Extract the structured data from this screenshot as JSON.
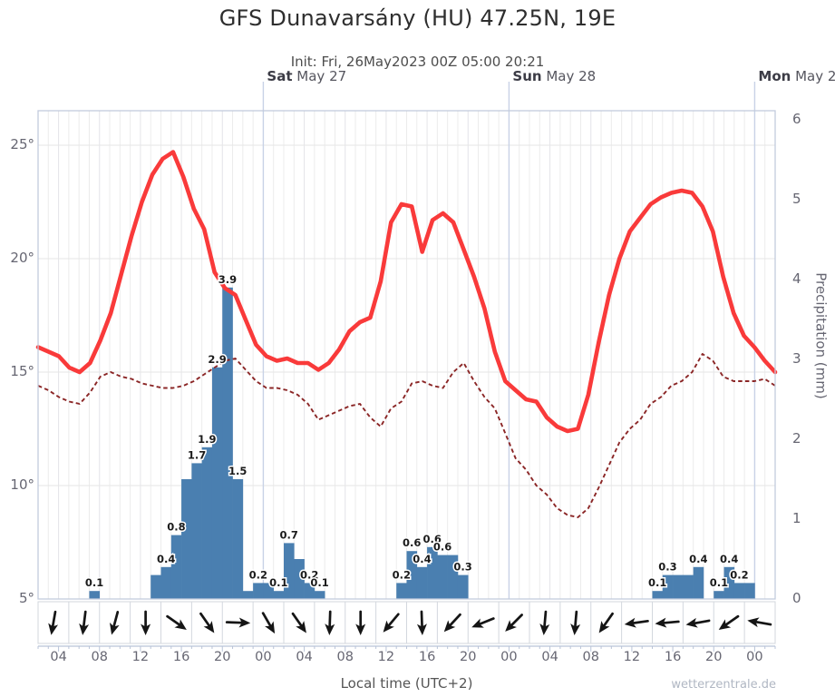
{
  "header": {
    "title": "GFS Dunavarsány (HU) 47.25N, 19E",
    "init_line": "Init: Fri, 26May2023 00Z 05:00 20:21"
  },
  "days": [
    {
      "name": "Sat",
      "date": "May 27"
    },
    {
      "name": "Sun",
      "date": "May 28"
    },
    {
      "name": "Mon",
      "date": "May 29"
    }
  ],
  "axes": {
    "temp_tick_labels": [
      "25°",
      "20°",
      "15°",
      "10°",
      "5°"
    ],
    "temp_tick_values": [
      25,
      20,
      15,
      10,
      5
    ],
    "precip_tick_labels": [
      "6",
      "5",
      "4",
      "3",
      "2",
      "1",
      "0"
    ],
    "precip_tick_values": [
      6,
      5,
      4,
      3,
      2,
      1,
      0
    ],
    "precip_label": "Precipitation (mm)",
    "x_label": "Local time (UTC+2)",
    "x_tick_labels": [
      "04",
      "08",
      "12",
      "16",
      "20",
      "00",
      "04",
      "08",
      "12",
      "16",
      "20",
      "00",
      "04",
      "08",
      "12",
      "16",
      "20",
      "00"
    ]
  },
  "watermark": "wetterzentrale.de",
  "colors": {
    "temperature": "#f93a3a",
    "dew_point": "#8b2626",
    "precip_bar": "#4a7fb0",
    "grid": "#ececec",
    "grid_h": "#e6e6e6",
    "day_line": "#c8d2e6",
    "border": "#c2cbdd",
    "axis_line": "#b9c4d8",
    "wind_arrow": "#151515",
    "bar_label": "#1b1b1b"
  },
  "chart_data": {
    "type": "meteogram (line + bar + wind arrows)",
    "title": "GFS Dunavarsány (HU) 47.25N, 19E",
    "hours": 72,
    "start": "Fri 26 May 2023 02:00 local (init 00Z)",
    "x_tick_hours": [
      "04",
      "08",
      "12",
      "16",
      "20",
      "00",
      "04",
      "08",
      "12",
      "16",
      "20",
      "00",
      "04",
      "08",
      "12",
      "16",
      "20",
      "00"
    ],
    "day_boundaries_hour_index": [
      22,
      46,
      70
    ],
    "ylim_temp_C": [
      5,
      26.5
    ],
    "ylim_precip_mm": [
      0,
      6.1
    ],
    "grid": true,
    "series": [
      {
        "name": "temperature_2m",
        "unit": "°C",
        "type": "line",
        "color": "#f93a3a",
        "values": [
          16.1,
          15.9,
          15.7,
          15.2,
          15.0,
          15.4,
          16.4,
          17.6,
          19.3,
          21.0,
          22.5,
          23.7,
          24.4,
          24.7,
          23.6,
          22.2,
          21.3,
          19.4,
          18.7,
          18.4,
          17.3,
          16.2,
          15.7,
          15.5,
          15.6,
          15.4,
          15.4,
          15.1,
          15.4,
          16.0,
          16.8,
          17.2,
          17.4,
          19.0,
          21.6,
          22.4,
          22.3,
          20.3,
          21.7,
          22.0,
          21.6,
          20.4,
          19.2,
          17.8,
          15.9,
          14.6,
          14.2,
          13.8,
          13.7,
          13.0,
          12.6,
          12.4,
          12.5,
          14.0,
          16.3,
          18.4,
          20.0,
          21.2,
          21.8,
          22.4,
          22.7,
          22.9,
          23.0,
          22.9,
          22.3,
          21.2,
          19.2,
          17.6,
          16.6,
          16.1,
          15.5,
          15.0
        ]
      },
      {
        "name": "dew_point",
        "unit": "°C",
        "type": "line",
        "style": "dashed",
        "color": "#8b2626",
        "values": [
          14.4,
          14.2,
          13.9,
          13.7,
          13.6,
          14.1,
          14.8,
          15.0,
          14.8,
          14.7,
          14.5,
          14.4,
          14.3,
          14.3,
          14.4,
          14.6,
          14.9,
          15.2,
          15.5,
          15.6,
          15.1,
          14.6,
          14.3,
          14.3,
          14.2,
          14.0,
          13.6,
          12.9,
          13.1,
          13.3,
          13.5,
          13.6,
          13.0,
          12.6,
          13.4,
          13.7,
          14.5,
          14.6,
          14.4,
          14.3,
          15.0,
          15.4,
          14.6,
          13.9,
          13.4,
          12.3,
          11.2,
          10.7,
          10.0,
          9.6,
          9.0,
          8.7,
          8.6,
          9.0,
          9.9,
          10.9,
          11.9,
          12.5,
          12.9,
          13.6,
          13.9,
          14.4,
          14.6,
          15.0,
          15.8,
          15.5,
          14.8,
          14.6,
          14.6,
          14.6,
          14.7,
          14.4
        ]
      },
      {
        "name": "precipitation",
        "unit": "mm/h",
        "type": "bar",
        "color": "#4a7fb0",
        "values": [
          0,
          0,
          0,
          0,
          0,
          0.1,
          0,
          0,
          0,
          0,
          0,
          0.3,
          0.4,
          0.8,
          1.5,
          1.7,
          1.9,
          2.9,
          3.9,
          1.5,
          0.1,
          0.2,
          0.2,
          0.1,
          0.7,
          0.5,
          0.2,
          0.1,
          0,
          0,
          0,
          0,
          0,
          0,
          0,
          0.2,
          0.6,
          0.4,
          0.65,
          0.55,
          0.55,
          0.3,
          0,
          0,
          0,
          0,
          0,
          0,
          0,
          0,
          0,
          0,
          0,
          0,
          0,
          0,
          0,
          0,
          0,
          0,
          0.1,
          0.3,
          0.3,
          0.3,
          0.4,
          0,
          0.1,
          0.4,
          0.2,
          0.2,
          0,
          0
        ],
        "value_labels": {
          "5": "0.1",
          "12": "0.4",
          "13": "0.8",
          "15": "1.7",
          "16": "1.9",
          "17": "2.9",
          "18": "3.9",
          "19": "1.5",
          "21": "0.2",
          "23": "0.1",
          "24": "0.7",
          "26": "0.2",
          "27": "0.1",
          "35": "0.2",
          "36": "0.6",
          "37": "0.4",
          "38": "0.6",
          "39": "0.6",
          "41": "0.3",
          "60": "0.1",
          "61": "0.3",
          "64": "0.4",
          "66": "0.1",
          "67": "0.4",
          "68": "0.2"
        }
      }
    ],
    "wind_arrows": {
      "interval_hours": 3,
      "angles_deg_clockwise_from_east": [
        100,
        97,
        105,
        90,
        35,
        55,
        2,
        60,
        55,
        92,
        90,
        130,
        88,
        133,
        158,
        135,
        95,
        95,
        125,
        172,
        175,
        170,
        145,
        190
      ],
      "pointing_toward_compass": [
        "S",
        "S",
        "SSW",
        "S",
        "ESE",
        "SE",
        "E",
        "SE",
        "SE",
        "S",
        "S",
        "SW",
        "S",
        "SW",
        "WSW",
        "SW",
        "S",
        "S",
        "SW",
        "W",
        "W",
        "W",
        "SW",
        "W"
      ]
    }
  }
}
